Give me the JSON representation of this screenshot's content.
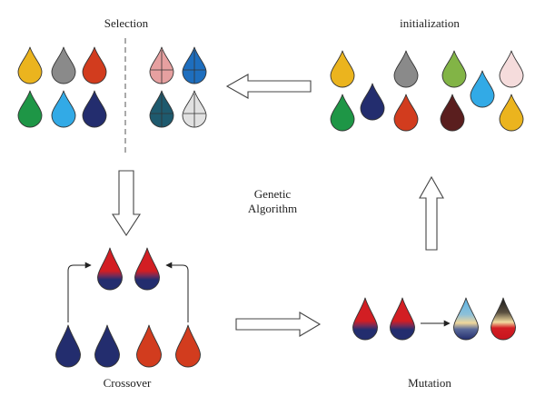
{
  "labels": {
    "selection": "Selection",
    "initialization": "initialization",
    "center_line1": "Genetic",
    "center_line2": "Algorithm",
    "crossover": "Crossover",
    "mutation": "Mutation"
  },
  "colors": {
    "yellow": "#ebb41e",
    "gray": "#8a8a8a",
    "red": "#d23c1e",
    "green": "#1e9646",
    "sky": "#32aae6",
    "navy": "#232d6e",
    "pink": "#e6a0a0",
    "blue": "#1e6ebe",
    "teal": "#1e5a6e",
    "light_gray": "#e1e1e1",
    "lime": "#82b446",
    "blush": "#f5dcdc",
    "maroon": "#5a1e1e",
    "crimson": "#d21e23"
  },
  "groups": {
    "selection_left": [
      "yellow",
      "gray",
      "red",
      "green",
      "sky",
      "navy"
    ],
    "selection_right": [
      "pink",
      "blue",
      "teal",
      "light_gray"
    ],
    "initialization": [
      "yellow",
      "gray",
      "lime",
      "blush",
      "green",
      "navy",
      "red",
      "sky",
      "maroon",
      "yellow"
    ],
    "crossover_parents": [
      "navy",
      "navy",
      "red",
      "red"
    ],
    "crossover_children": [
      "red-navy blend",
      "red-navy blend"
    ],
    "mutation_before": [
      "red-navy blend",
      "red-navy blend"
    ],
    "mutation_after": [
      "sky-cream-navy blend",
      "black-cream-red blend"
    ]
  }
}
